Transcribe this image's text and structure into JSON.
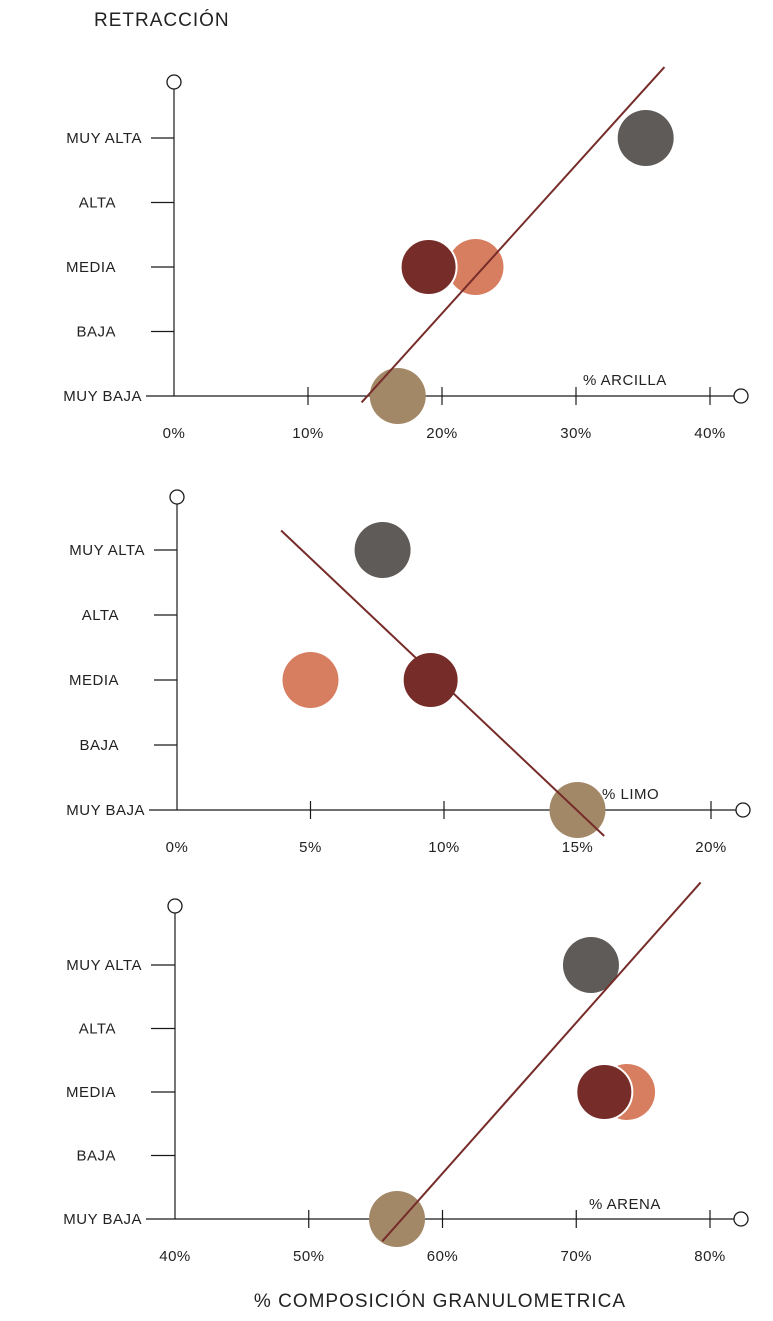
{
  "top_title": "RETRACCIÓN",
  "bottom_title": "% COMPOSICIÓN GRANULOMETRICA",
  "colors": {
    "gray": "#5f5b58",
    "salmon": "#d77e61",
    "maroon": "#762c29",
    "tan": "#a38868",
    "trend": "#762c29",
    "axis": "#1a1a1a"
  },
  "chart_data": [
    {
      "type": "scatter",
      "xlabel": "% ARCILLA",
      "x_ticks": [
        "0%",
        "10%",
        "20%",
        "30%",
        "40%"
      ],
      "xlim": [
        0,
        40
      ],
      "y_categories": [
        "MUY BAJA",
        "BAJA",
        "MEDIA",
        "ALTA",
        "MUY ALTA"
      ],
      "points": [
        {
          "color": "salmon",
          "x": 22.5,
          "y": "MEDIA"
        },
        {
          "color": "maroon",
          "x": 19,
          "y": "MEDIA"
        },
        {
          "color": "gray",
          "x": 35.2,
          "y": "MUY ALTA"
        },
        {
          "color": "tan",
          "x": 16.7,
          "y": "MUY BAJA"
        }
      ],
      "trend": {
        "from": [
          14,
          -0.1
        ],
        "to": [
          36.6,
          5.1
        ]
      }
    },
    {
      "type": "scatter",
      "xlabel": "% LIMO",
      "x_ticks": [
        "0%",
        "5%",
        "10%",
        "15%",
        "20%"
      ],
      "xlim": [
        0,
        20
      ],
      "y_categories": [
        "MUY BAJA",
        "BAJA",
        "MEDIA",
        "ALTA",
        "MUY ALTA"
      ],
      "points": [
        {
          "color": "gray",
          "x": 7.7,
          "y": "MUY ALTA"
        },
        {
          "color": "salmon",
          "x": 5,
          "y": "MEDIA"
        },
        {
          "color": "maroon",
          "x": 9.5,
          "y": "MEDIA"
        },
        {
          "color": "tan",
          "x": 15,
          "y": "MUY BAJA"
        }
      ],
      "trend": {
        "from": [
          3.9,
          4.3
        ],
        "to": [
          16,
          -0.4
        ]
      }
    },
    {
      "type": "scatter",
      "xlabel": "% ARENA",
      "x_ticks": [
        "40%",
        "50%",
        "60%",
        "70%",
        "80%"
      ],
      "xlim": [
        40,
        80
      ],
      "y_categories": [
        "MUY BAJA",
        "BAJA",
        "MEDIA",
        "ALTA",
        "MUY ALTA"
      ],
      "points": [
        {
          "color": "gray",
          "x": 71.1,
          "y": "MUY ALTA"
        },
        {
          "color": "salmon",
          "x": 73.8,
          "y": "MEDIA"
        },
        {
          "color": "maroon",
          "x": 72.1,
          "y": "MEDIA"
        },
        {
          "color": "tan",
          "x": 56.6,
          "y": "MUY BAJA"
        }
      ],
      "trend": {
        "from": [
          55.5,
          -0.35
        ],
        "to": [
          79.3,
          5.3
        ]
      }
    }
  ]
}
